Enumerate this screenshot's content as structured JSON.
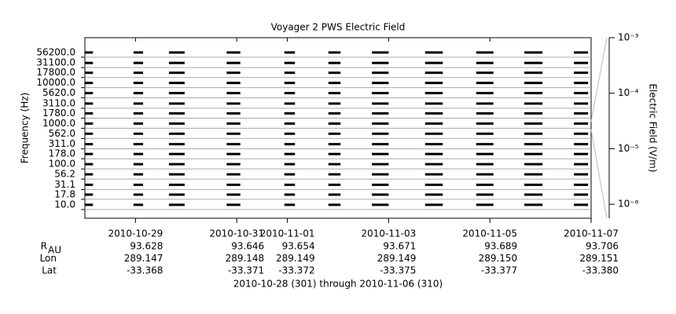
{
  "chart_data": {
    "type": "segments",
    "title": "Voyager 2 PWS Electric Field",
    "ylabel": "Frequency (Hz)",
    "y2label": "Electric Field (V/m)",
    "footer": "2010-10-28 (301) through 2010-11-06 (310)",
    "yscale": "log",
    "ylim": [
      6.1,
      170000
    ],
    "yticks": [
      {
        "value": 10,
        "label": "10.0"
      },
      {
        "value": 17.8,
        "label": "17.8"
      },
      {
        "value": 31.1,
        "label": "31.1"
      },
      {
        "value": 56.2,
        "label": "56.2"
      },
      {
        "value": 100,
        "label": "100.0"
      },
      {
        "value": 178,
        "label": "178.0"
      },
      {
        "value": 311,
        "label": "311.0"
      },
      {
        "value": 562,
        "label": "562.0"
      },
      {
        "value": 1000,
        "label": "1000.0"
      },
      {
        "value": 1780,
        "label": "1780.0"
      },
      {
        "value": 3110,
        "label": "3110.0"
      },
      {
        "value": 5620,
        "label": "5620.0"
      },
      {
        "value": 10000,
        "label": "10000.0"
      },
      {
        "value": 17800,
        "label": "17800.0"
      },
      {
        "value": 31100,
        "label": "31100.0"
      },
      {
        "value": 56200,
        "label": "56200.0"
      }
    ],
    "xlim": [
      301,
      311
    ],
    "xticks": [
      {
        "value": 302,
        "label": "2010-10-29"
      },
      {
        "value": 304,
        "label": "2010-10-31"
      },
      {
        "value": 305,
        "label": "2010-11-01"
      },
      {
        "value": 307,
        "label": "2010-11-03"
      },
      {
        "value": 309,
        "label": "2010-11-05"
      },
      {
        "value": 311,
        "label": "2010-11-07"
      }
    ],
    "segments": [
      [
        301.0,
        301.16
      ],
      [
        301.96,
        302.15
      ],
      [
        302.66,
        302.97
      ],
      [
        303.8,
        304.07
      ],
      [
        304.94,
        305.15
      ],
      [
        305.81,
        306.05
      ],
      [
        306.67,
        307.0
      ],
      [
        307.72,
        308.07
      ],
      [
        308.73,
        309.07
      ],
      [
        309.68,
        310.04
      ],
      [
        310.66,
        310.94
      ]
    ],
    "color": "#000000",
    "y2scale": "log",
    "y2lim": [
      5.6e-07,
      0.001
    ],
    "y2ticks": [
      {
        "value": 1e-06,
        "label": "10⁻⁶"
      },
      {
        "value": 1e-05,
        "label": "10⁻⁵"
      },
      {
        "value": 0.0001,
        "label": "10⁻⁴"
      },
      {
        "value": 0.001,
        "label": "10⁻³"
      }
    ],
    "ephemeris": [
      {
        "label": "R",
        "label_sub": "AU",
        "values": [
          "93.628",
          "93.646",
          "93.654",
          "93.671",
          "93.689",
          "93.706"
        ]
      },
      {
        "label": "Lon",
        "values": [
          "289.147",
          "289.148",
          "289.149",
          "289.149",
          "289.150",
          "289.151"
        ]
      },
      {
        "label": "Lat",
        "values": [
          "-33.368",
          "-33.371",
          "-33.372",
          "-33.375",
          "-33.377",
          "-33.380"
        ]
      }
    ]
  }
}
